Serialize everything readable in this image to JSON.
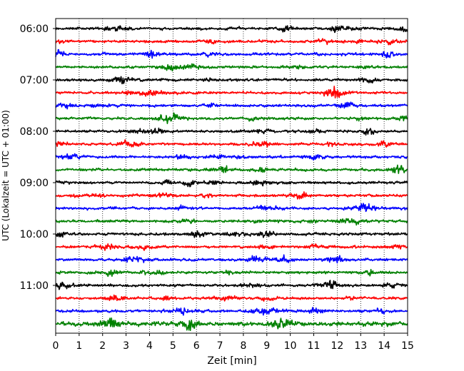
{
  "chart_data": {
    "type": "line",
    "title": "",
    "xlabel": "Zeit  [min]",
    "ylabel": "UTC (Lokalzeit = UTC + 01:00)",
    "xlim": [
      0,
      15
    ],
    "x_ticks": [
      "0",
      "1",
      "2",
      "3",
      "4",
      "5",
      "6",
      "7",
      "8",
      "9",
      "10",
      "11",
      "12",
      "13",
      "14",
      "15"
    ],
    "y_hour_labels": [
      "06:00",
      "07:00",
      "08:00",
      "09:00",
      "10:00",
      "11:00"
    ],
    "traces_per_hour": 4,
    "trace_count": 24,
    "trace_colors": [
      "#000000",
      "#ff0000",
      "#0000ff",
      "#008000"
    ],
    "grid": "vertical dotted lines at each minute",
    "description_of_series": "24 seismogram traces, each covering 15 minutes, stacked from 06:00 to 11:45 UTC"
  }
}
